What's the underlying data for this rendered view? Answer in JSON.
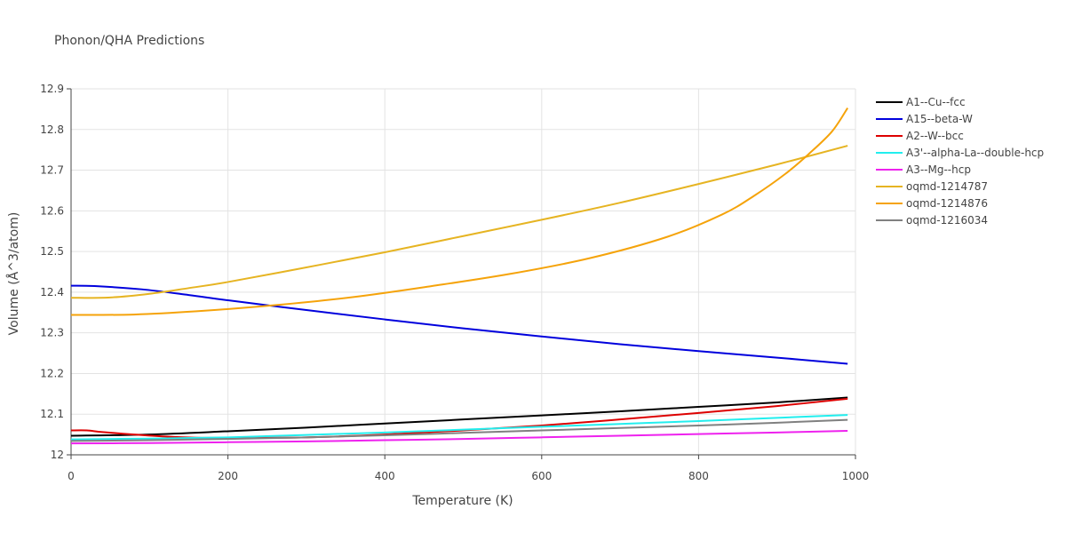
{
  "chart_data": {
    "type": "line",
    "title": "Phonon/QHA Predictions",
    "xlabel": "Temperature (K)",
    "ylabel": "Volume (Å^3/atom)",
    "xlim": [
      0,
      1000
    ],
    "ylim": [
      12.0,
      12.9
    ],
    "xticks": [
      0,
      200,
      400,
      600,
      800,
      1000
    ],
    "xtick_labels": [
      "0",
      "200",
      "400",
      "600",
      "800",
      "1000"
    ],
    "yticks": [
      12.0,
      12.1,
      12.2,
      12.3,
      12.4,
      12.5,
      12.6,
      12.7,
      12.8,
      12.9
    ],
    "ytick_labels": [
      "12",
      "12.1",
      "12.2",
      "12.3",
      "12.4",
      "12.5",
      "12.6",
      "12.7",
      "12.8",
      "12.9"
    ],
    "grid": true,
    "legend_position": "right",
    "series": [
      {
        "name": "A1--Cu--fcc",
        "color": "#000000",
        "x": [
          0,
          100,
          200,
          300,
          400,
          500,
          600,
          700,
          800,
          900,
          990
        ],
        "y": [
          12.047,
          12.05,
          12.058,
          12.067,
          12.077,
          12.087,
          12.097,
          12.107,
          12.118,
          12.129,
          12.141
        ]
      },
      {
        "name": "A15--beta-W",
        "color": "#0000dd",
        "x": [
          0,
          30,
          90,
          150,
          200,
          300,
          400,
          500,
          600,
          700,
          800,
          900,
          990
        ],
        "y": [
          12.416,
          12.415,
          12.407,
          12.393,
          12.38,
          12.356,
          12.333,
          12.311,
          12.291,
          12.272,
          12.255,
          12.239,
          12.224
        ]
      },
      {
        "name": "A2--W--bcc",
        "color": "#dd0000",
        "x": [
          0,
          20,
          40,
          80,
          120,
          160,
          200,
          300,
          400,
          500,
          600,
          700,
          800,
          900,
          990
        ],
        "y": [
          12.06,
          12.06,
          12.056,
          12.05,
          12.045,
          12.042,
          12.042,
          12.043,
          12.05,
          12.06,
          12.072,
          12.087,
          12.103,
          12.12,
          12.138
        ]
      },
      {
        "name": "A3'--alpha-La--double-hcp",
        "color": "#22eeee",
        "x": [
          0,
          100,
          200,
          300,
          400,
          500,
          600,
          700,
          800,
          900,
          990
        ],
        "y": [
          12.038,
          12.04,
          12.043,
          12.049,
          12.055,
          12.062,
          12.069,
          12.076,
          12.083,
          12.091,
          12.098
        ]
      },
      {
        "name": "A3--Mg--hcp",
        "color": "#ee22ee",
        "x": [
          0,
          100,
          200,
          300,
          400,
          500,
          600,
          700,
          800,
          900,
          990
        ],
        "y": [
          12.028,
          12.029,
          12.031,
          12.033,
          12.036,
          12.039,
          12.043,
          12.047,
          12.051,
          12.055,
          12.059
        ]
      },
      {
        "name": "oqmd-1214787",
        "color": "#e6b422",
        "x": [
          0,
          50,
          100,
          150,
          200,
          300,
          400,
          500,
          600,
          700,
          800,
          900,
          990
        ],
        "y": [
          12.386,
          12.387,
          12.396,
          12.41,
          12.425,
          12.461,
          12.498,
          12.538,
          12.578,
          12.62,
          12.666,
          12.714,
          12.76
        ]
      },
      {
        "name": "oqmd-1214876",
        "color": "#f5a30a",
        "x": [
          0,
          80,
          160,
          260,
          360,
          460,
          560,
          660,
          760,
          830,
          870,
          910,
          940,
          970,
          990
        ],
        "y": [
          12.344,
          12.345,
          12.353,
          12.368,
          12.388,
          12.415,
          12.445,
          12.483,
          12.536,
          12.591,
          12.636,
          12.69,
          12.739,
          12.795,
          12.853
        ]
      },
      {
        "name": "oqmd-1216034",
        "color": "#808080",
        "x": [
          0,
          100,
          200,
          300,
          400,
          500,
          600,
          700,
          800,
          900,
          990
        ],
        "y": [
          12.034,
          12.036,
          12.039,
          12.043,
          12.048,
          12.054,
          12.06,
          12.066,
          12.072,
          12.079,
          12.086
        ]
      }
    ]
  }
}
